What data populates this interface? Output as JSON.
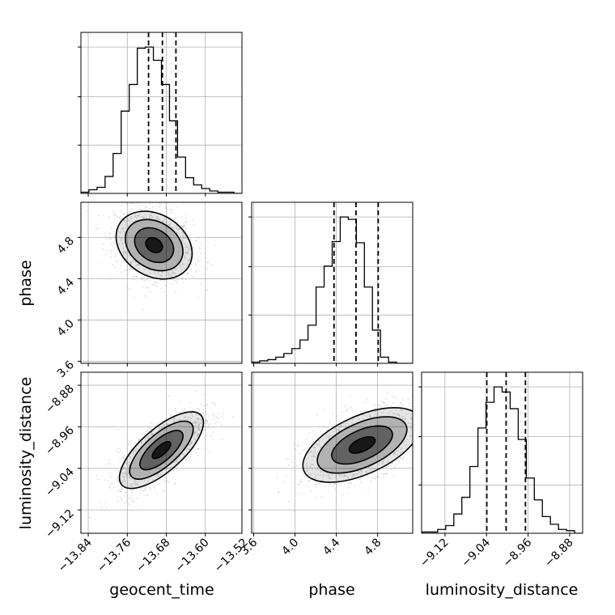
{
  "chart_data": {
    "type": "corner",
    "parameters": [
      "geocent_time",
      "phase",
      "luminosity_distance"
    ],
    "ranges": {
      "geocent_time": [
        -13.855,
        -13.525
      ],
      "phase": [
        3.58,
        5.14
      ],
      "luminosity_distance": [
        -9.165,
        -8.855
      ]
    },
    "grid": true,
    "marginals": [
      {
        "parameter": "geocent_time",
        "bin_width": 0.0165,
        "counts": [
          1,
          3,
          5,
          14,
          33,
          68,
          90,
          120,
          121,
          110,
          90,
          60,
          30,
          13,
          7,
          4,
          2,
          1,
          1,
          0
        ],
        "quantiles": [
          -13.7164,
          -13.688,
          -13.6603
        ]
      },
      {
        "parameter": "phase",
        "bin_width": 0.078,
        "counts": [
          1,
          2,
          3,
          5,
          8,
          12,
          19,
          31,
          62,
          79,
          99,
          119,
          117,
          98,
          62,
          27,
          5,
          1,
          0,
          0
        ],
        "quantiles": [
          4.378,
          4.591,
          4.806
        ]
      },
      {
        "parameter": "luminosity_distance",
        "bin_width": 0.0155,
        "counts": [
          1,
          1,
          3,
          6,
          15,
          28,
          52,
          82,
          102,
          114,
          110,
          97,
          73,
          43,
          26,
          13,
          7,
          3,
          2,
          0
        ],
        "quantiles": [
          -9.0395,
          -9.0023,
          -8.9651
        ]
      }
    ],
    "joint": [
      {
        "x": "geocent_time",
        "y": "phase",
        "center": [
          -13.705,
          4.725
        ],
        "spread": [
          0.038,
          0.16
        ],
        "correlation": -0.25,
        "levels": 4
      },
      {
        "x": "geocent_time",
        "y": "luminosity_distance",
        "center": [
          -13.69,
          -9.005
        ],
        "spread": [
          0.042,
          0.036
        ],
        "correlation": 0.72,
        "levels": 4
      },
      {
        "x": "phase",
        "y": "luminosity_distance",
        "center": [
          4.65,
          -8.995
        ],
        "spread": [
          0.28,
          0.035
        ],
        "correlation": 0.55,
        "levels": 4
      }
    ],
    "tick_labels": {
      "geocent_time_x": [
        "−13.84",
        "−13.76",
        "−13.68",
        "−13.60",
        "−13.52"
      ],
      "phase_x": [
        "3.6",
        "4.0",
        "4.4",
        "4.8"
      ],
      "luminosity_distance_x": [
        "−9.12",
        "−9.04",
        "−8.96",
        "−8.88"
      ],
      "phase_y": [
        "3.6",
        "4.0",
        "4.4",
        "4.8"
      ],
      "luminosity_distance_y": [
        "−9.12",
        "−9.04",
        "−8.96",
        "−8.88"
      ]
    },
    "tick_values": {
      "geocent_time": [
        -13.84,
        -13.76,
        -13.68,
        -13.6,
        -13.52
      ],
      "phase": [
        3.6,
        4.0,
        4.4,
        4.8
      ],
      "luminosity_distance": [
        -9.12,
        -9.04,
        -8.96,
        -8.88
      ]
    },
    "axis_labels": {
      "geocent_time": "geocent_time",
      "phase": "phase",
      "luminosity_distance": "luminosity_distance"
    },
    "colors": {
      "line": "#000000",
      "grid": "#b0b0b0",
      "scatter": "#9a9a9a",
      "density": "#000000"
    }
  }
}
